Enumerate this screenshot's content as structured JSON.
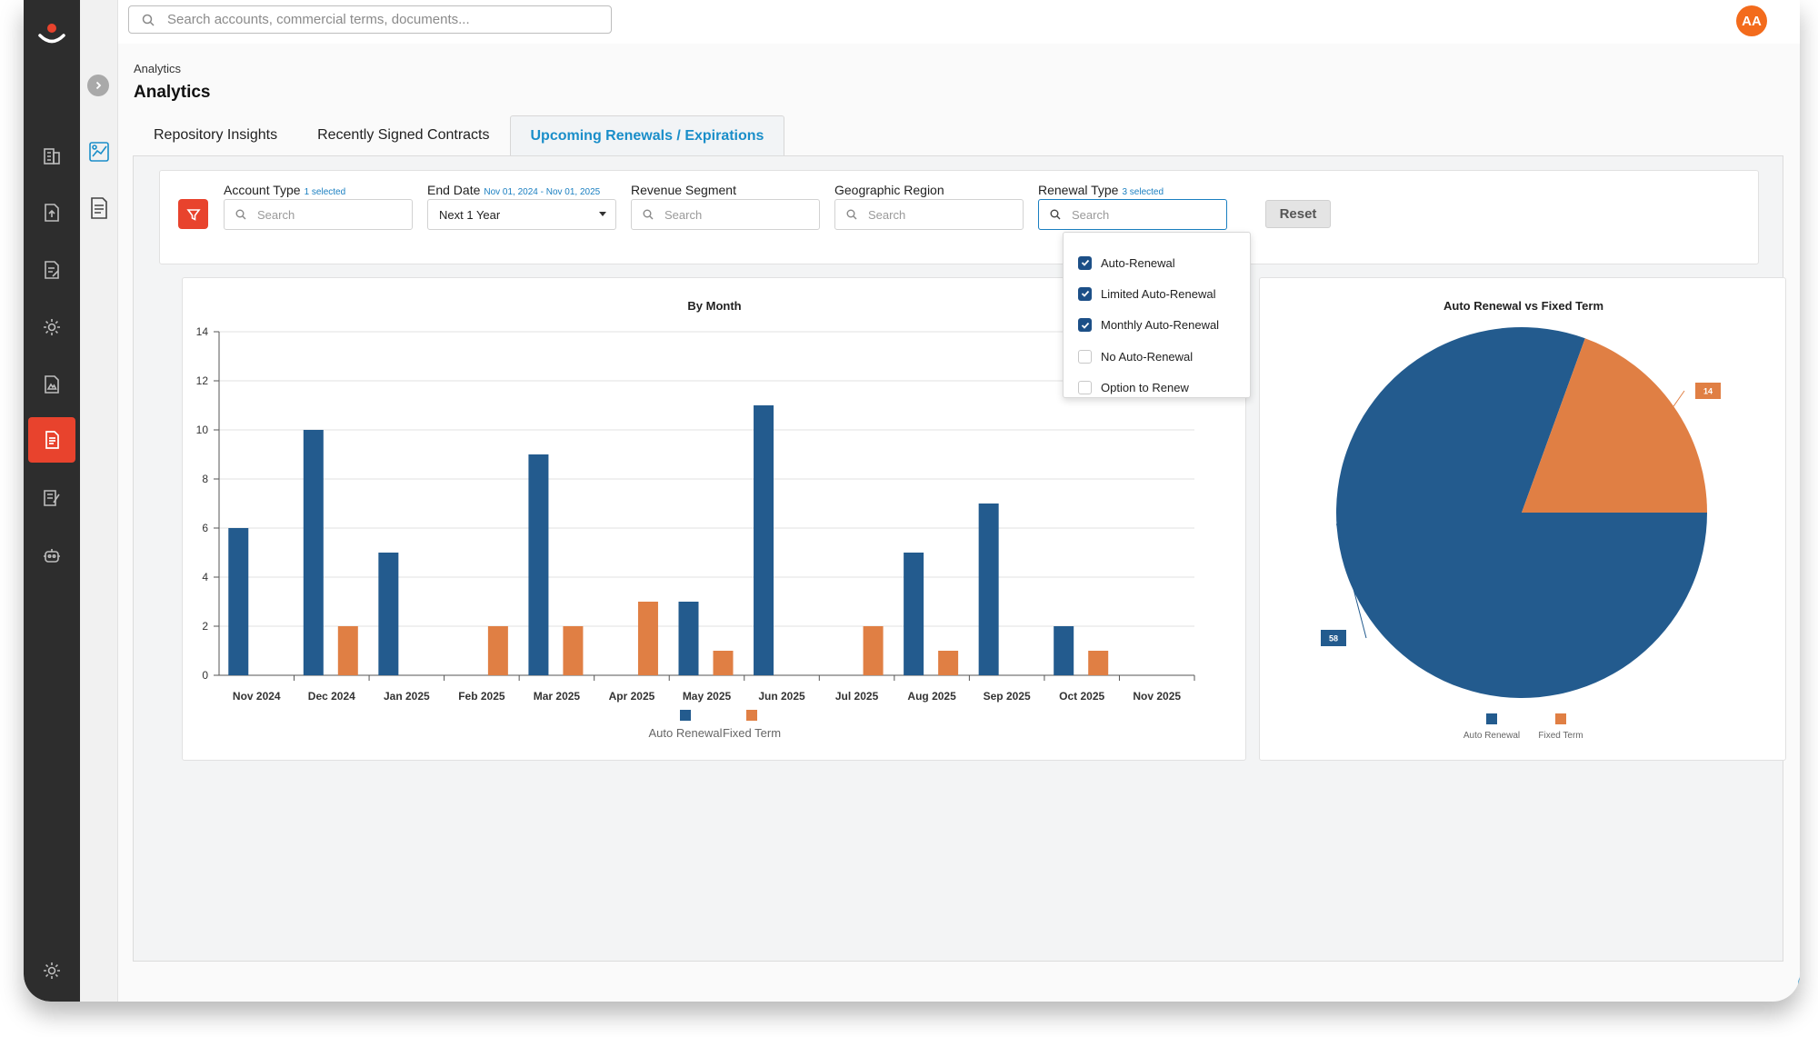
{
  "search": {
    "placeholder": "Search accounts, commercial terms, documents..."
  },
  "user": {
    "initials": "AA"
  },
  "breadcrumb": "Analytics",
  "page_title": "Analytics",
  "tabs": [
    {
      "label": "Repository Insights",
      "active": false
    },
    {
      "label": "Recently Signed Contracts",
      "active": false
    },
    {
      "label": "Upcoming Renewals / Expirations",
      "active": true
    }
  ],
  "filters": {
    "account_type": {
      "label": "Account Type",
      "hint": "1 selected",
      "placeholder": "Search"
    },
    "end_date": {
      "label": "End Date",
      "hint": "Nov 01, 2024 - Nov 01, 2025",
      "value": "Next 1 Year"
    },
    "revenue_segment": {
      "label": "Revenue Segment",
      "placeholder": "Search"
    },
    "geographic_region": {
      "label": "Geographic Region",
      "placeholder": "Search"
    },
    "renewal_type": {
      "label": "Renewal Type",
      "hint": "3 selected",
      "placeholder": "Search",
      "options": [
        {
          "label": "Auto-Renewal",
          "checked": true
        },
        {
          "label": "Limited Auto-Renewal",
          "checked": true
        },
        {
          "label": "Monthly Auto-Renewal",
          "checked": true
        },
        {
          "label": "No Auto-Renewal",
          "checked": false
        },
        {
          "label": "Option to Renew",
          "checked": false
        }
      ]
    },
    "reset_label": "Reset"
  },
  "colors": {
    "auto": "#235b8e",
    "fixed": "#e07f44",
    "accent": "#e8432d",
    "link": "#1a8ec9"
  },
  "chart_data": [
    {
      "type": "bar",
      "title": "By Month",
      "categories": [
        "Nov 2024",
        "Dec 2024",
        "Jan 2025",
        "Feb 2025",
        "Mar 2025",
        "Apr 2025",
        "May 2025",
        "Jun 2025",
        "Jul 2025",
        "Aug 2025",
        "Sep 2025",
        "Oct 2025",
        "Nov 2025"
      ],
      "series": [
        {
          "name": "Auto Renewal",
          "values": [
            6,
            10,
            5,
            0,
            9,
            0,
            3,
            11,
            0,
            5,
            7,
            2,
            0
          ]
        },
        {
          "name": "Fixed Term",
          "values": [
            0,
            2,
            0,
            2,
            2,
            3,
            1,
            0,
            2,
            1,
            0,
            1,
            0
          ]
        }
      ],
      "ylim": [
        0,
        14
      ],
      "yticks": [
        0,
        2,
        4,
        6,
        8,
        10,
        12,
        14
      ],
      "legend": "bottom",
      "grid": true
    },
    {
      "type": "pie",
      "title": "Auto Renewal vs Fixed Term",
      "slices": [
        {
          "name": "Auto Renewal",
          "value": 58
        },
        {
          "name": "Fixed Term",
          "value": 14
        }
      ],
      "legend": "bottom"
    }
  ]
}
